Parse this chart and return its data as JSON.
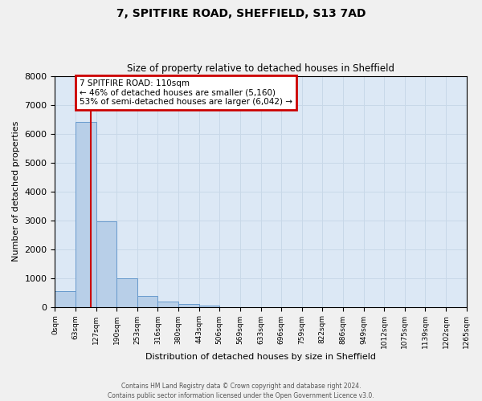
{
  "title": "7, SPITFIRE ROAD, SHEFFIELD, S13 7AD",
  "subtitle": "Size of property relative to detached houses in Sheffield",
  "xlabel": "Distribution of detached houses by size in Sheffield",
  "ylabel": "Number of detached properties",
  "bar_edges": [
    0,
    63,
    127,
    190,
    253,
    316,
    380,
    443,
    506,
    569,
    633,
    696,
    759,
    822,
    886,
    949,
    1012,
    1075,
    1139,
    1202,
    1265
  ],
  "bar_heights": [
    550,
    6400,
    2950,
    980,
    380,
    175,
    100,
    50,
    0,
    0,
    0,
    0,
    0,
    0,
    0,
    0,
    0,
    0,
    0,
    0
  ],
  "bar_color": "#b8cfe8",
  "bar_edge_color": "#6699cc",
  "property_line_x": 110,
  "property_line_color": "#cc0000",
  "ylim": [
    0,
    8000
  ],
  "yticks": [
    0,
    1000,
    2000,
    3000,
    4000,
    5000,
    6000,
    7000,
    8000
  ],
  "xtick_labels": [
    "0sqm",
    "63sqm",
    "127sqm",
    "190sqm",
    "253sqm",
    "316sqm",
    "380sqm",
    "443sqm",
    "506sqm",
    "569sqm",
    "633sqm",
    "696sqm",
    "759sqm",
    "822sqm",
    "886sqm",
    "949sqm",
    "1012sqm",
    "1075sqm",
    "1139sqm",
    "1202sqm",
    "1265sqm"
  ],
  "annotation_title": "7 SPITFIRE ROAD: 110sqm",
  "annotation_line1": "← 46% of detached houses are smaller (5,160)",
  "annotation_line2": "53% of semi-detached houses are larger (6,042) →",
  "annotation_box_color": "#cc0000",
  "grid_color": "#c8d8e8",
  "background_color": "#dce8f5",
  "footer_line1": "Contains HM Land Registry data © Crown copyright and database right 2024.",
  "footer_line2": "Contains public sector information licensed under the Open Government Licence v3.0."
}
